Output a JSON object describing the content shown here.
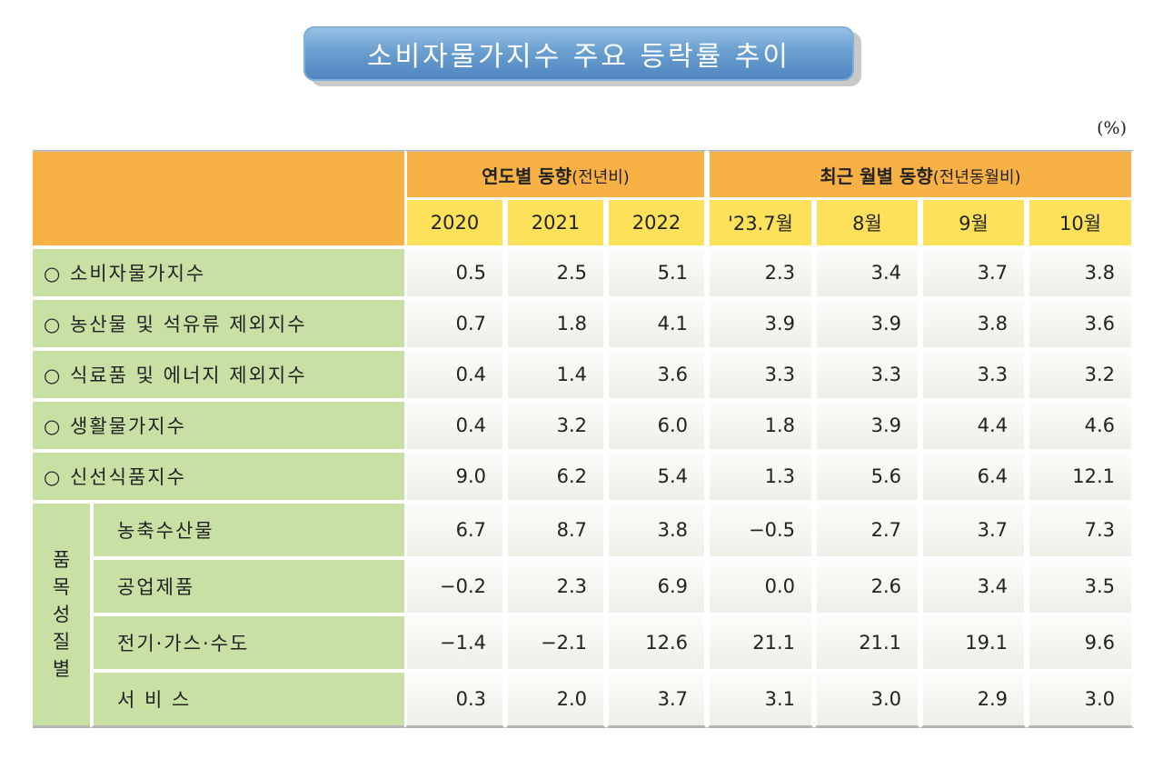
{
  "title": "소비자물가지수 주요 등락률 추이",
  "unit": "(%)",
  "header": {
    "group_annual": "연도별 동향",
    "group_annual_note": "(전년비)",
    "group_monthly": "최근 월별 동향",
    "group_monthly_note": "(전년동월비)",
    "columns": [
      "2020",
      "2021",
      "2022",
      "'23.7월",
      "8월",
      "9월",
      "10월"
    ]
  },
  "rows": [
    {
      "label": "○ 소비자물가지수",
      "values": [
        "0.5",
        "2.5",
        "5.1",
        "2.3",
        "3.4",
        "3.7",
        "3.8"
      ]
    },
    {
      "label": "○ 농산물 및 석유류 제외지수",
      "values": [
        "0.7",
        "1.8",
        "4.1",
        "3.9",
        "3.9",
        "3.8",
        "3.6"
      ]
    },
    {
      "label": "○ 식료품 및 에너지 제외지수",
      "values": [
        "0.4",
        "1.4",
        "3.6",
        "3.3",
        "3.3",
        "3.3",
        "3.2"
      ]
    },
    {
      "label": "○ 생활물가지수",
      "values": [
        "0.4",
        "3.2",
        "6.0",
        "1.8",
        "3.9",
        "4.4",
        "4.6"
      ]
    },
    {
      "label": "○ 신선식품지수",
      "values": [
        "9.0",
        "6.2",
        "5.4",
        "1.3",
        "5.6",
        "6.4",
        "12.1"
      ]
    }
  ],
  "category_label": [
    "품",
    "목",
    "성",
    "질",
    "별"
  ],
  "sub_rows": [
    {
      "label": "농축수산물",
      "values": [
        "6.7",
        "8.7",
        "3.8",
        "−0.5",
        "2.7",
        "3.7",
        "7.3"
      ]
    },
    {
      "label": "공업제품",
      "values": [
        "−0.2",
        "2.3",
        "6.9",
        "0.0",
        "2.6",
        "3.4",
        "3.5"
      ]
    },
    {
      "label": "전기·가스·수도",
      "values": [
        "−1.4",
        "−2.1",
        "12.6",
        "21.1",
        "21.1",
        "19.1",
        "9.6"
      ]
    },
    {
      "label": "서 비 스",
      "values": [
        "0.3",
        "2.0",
        "3.7",
        "3.1",
        "3.0",
        "2.9",
        "3.0"
      ]
    }
  ]
}
